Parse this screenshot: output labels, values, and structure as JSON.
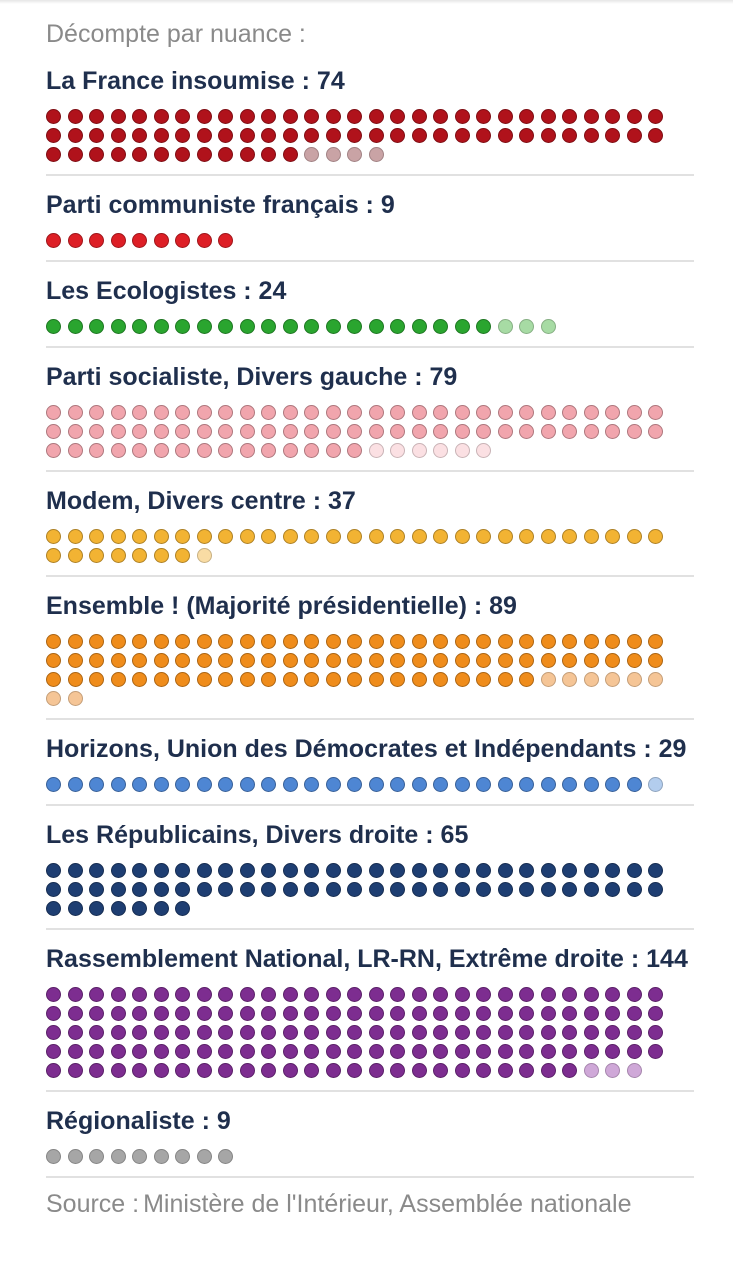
{
  "header": {
    "intro": "Décompte par nuance :"
  },
  "chart_data": {
    "type": "dot-matrix",
    "title": "Décompte par nuance :",
    "groups": [
      {
        "label": "La France insoumise : 74",
        "name": "La France insoumise",
        "total": 74,
        "highlighted": 70,
        "color": "#b0121b",
        "light_color": "#c9a3a5"
      },
      {
        "label": "Parti communiste français : 9",
        "name": "Parti communiste français",
        "total": 9,
        "highlighted": 9,
        "color": "#dd1f26",
        "light_color": "#f0a6a8"
      },
      {
        "label": "Les Ecologistes : 24",
        "name": "Les Ecologistes",
        "total": 24,
        "highlighted": 21,
        "color": "#2aa52f",
        "light_color": "#a7dba4"
      },
      {
        "label": "Parti socialiste, Divers gauche : 79",
        "name": "Parti socialiste, Divers gauche",
        "total": 79,
        "highlighted": 73,
        "color": "#f1a5ad",
        "light_color": "#fbe0e3"
      },
      {
        "label": "Modem, Divers centre : 37",
        "name": "Modem, Divers centre",
        "total": 37,
        "highlighted": 36,
        "color": "#f2b333",
        "light_color": "#f9dca4"
      },
      {
        "label": "Ensemble ! (Majorité présidentielle) : 89",
        "name": "Ensemble ! (Majorité présidentielle)",
        "total": 89,
        "highlighted": 81,
        "color": "#ef8c1b",
        "light_color": "#f5c596"
      },
      {
        "label": "Horizons, Union des Démocrates et Indépendants : 29",
        "name": "Horizons, Union des Démocrates et Indépendants",
        "total": 29,
        "highlighted": 28,
        "color": "#4e86d3",
        "light_color": "#b3cdee"
      },
      {
        "label": "Les Républicains, Divers droite : 65",
        "name": "Les Républicains, Divers droite",
        "total": 65,
        "highlighted": 65,
        "color": "#1e3e72",
        "light_color": "#9aaac3"
      },
      {
        "label": "Rassemblement National, LR-RN, Extrême droite : 144",
        "name": "Rassemblement National, LR-RN, Extrême droite",
        "total": 144,
        "highlighted": 141,
        "color": "#7d2d90",
        "light_color": "#cfa8d8"
      },
      {
        "label": "Régionaliste : 9",
        "name": "Régionaliste",
        "total": 9,
        "highlighted": 0,
        "color": "#8f8f8f",
        "light_color": "#a6a6a6"
      }
    ]
  },
  "footer": {
    "source_label": "Source :",
    "source_text": "Ministère de l'Intérieur, Assemblée nationale"
  }
}
